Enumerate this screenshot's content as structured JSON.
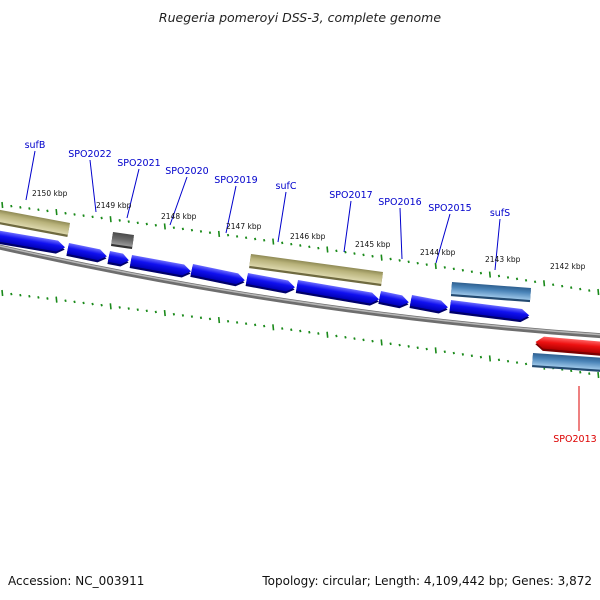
{
  "title": "Ruegeria pomeroyi DSS-3, complete genome",
  "footer": {
    "accession": "Accession: NC_003911",
    "topology": "Topology: circular; Length: 4,109,442 bp; Genes: 3,872"
  },
  "colors": {
    "cds_blue": "#0a0ae6",
    "cds_blue_light": "#5a5aff",
    "tan": "#b8b27a",
    "tan_light": "#d9d4a6",
    "steel": "#4a84b8",
    "steel_light": "#8fbce0",
    "gray_gene": "#6a6a6a",
    "red_gene": "#ee1111",
    "label_blue": "#0000cc",
    "label_red": "#dd0000",
    "tick_green": "#1a8a1a",
    "backbone": "#8a8a8a"
  },
  "kbp_labels": [
    "2150 kbp",
    "2149 kbp",
    "2148 kbp",
    "2147 kbp",
    "2146 kbp",
    "2145 kbp",
    "2144 kbp",
    "2143 kbp",
    "2142 kbp"
  ],
  "genes": [
    {
      "name": "sufB",
      "color": "label_blue"
    },
    {
      "name": "SPO2022",
      "color": "label_blue"
    },
    {
      "name": "SPO2021",
      "color": "label_blue"
    },
    {
      "name": "SPO2020",
      "color": "label_blue"
    },
    {
      "name": "SPO2019",
      "color": "label_blue"
    },
    {
      "name": "sufC",
      "color": "label_blue"
    },
    {
      "name": "SPO2017",
      "color": "label_blue"
    },
    {
      "name": "SPO2016",
      "color": "label_blue"
    },
    {
      "name": "SPO2015",
      "color": "label_blue"
    },
    {
      "name": "sufS",
      "color": "label_blue"
    },
    {
      "name": "SPO2013",
      "color": "label_red"
    }
  ]
}
